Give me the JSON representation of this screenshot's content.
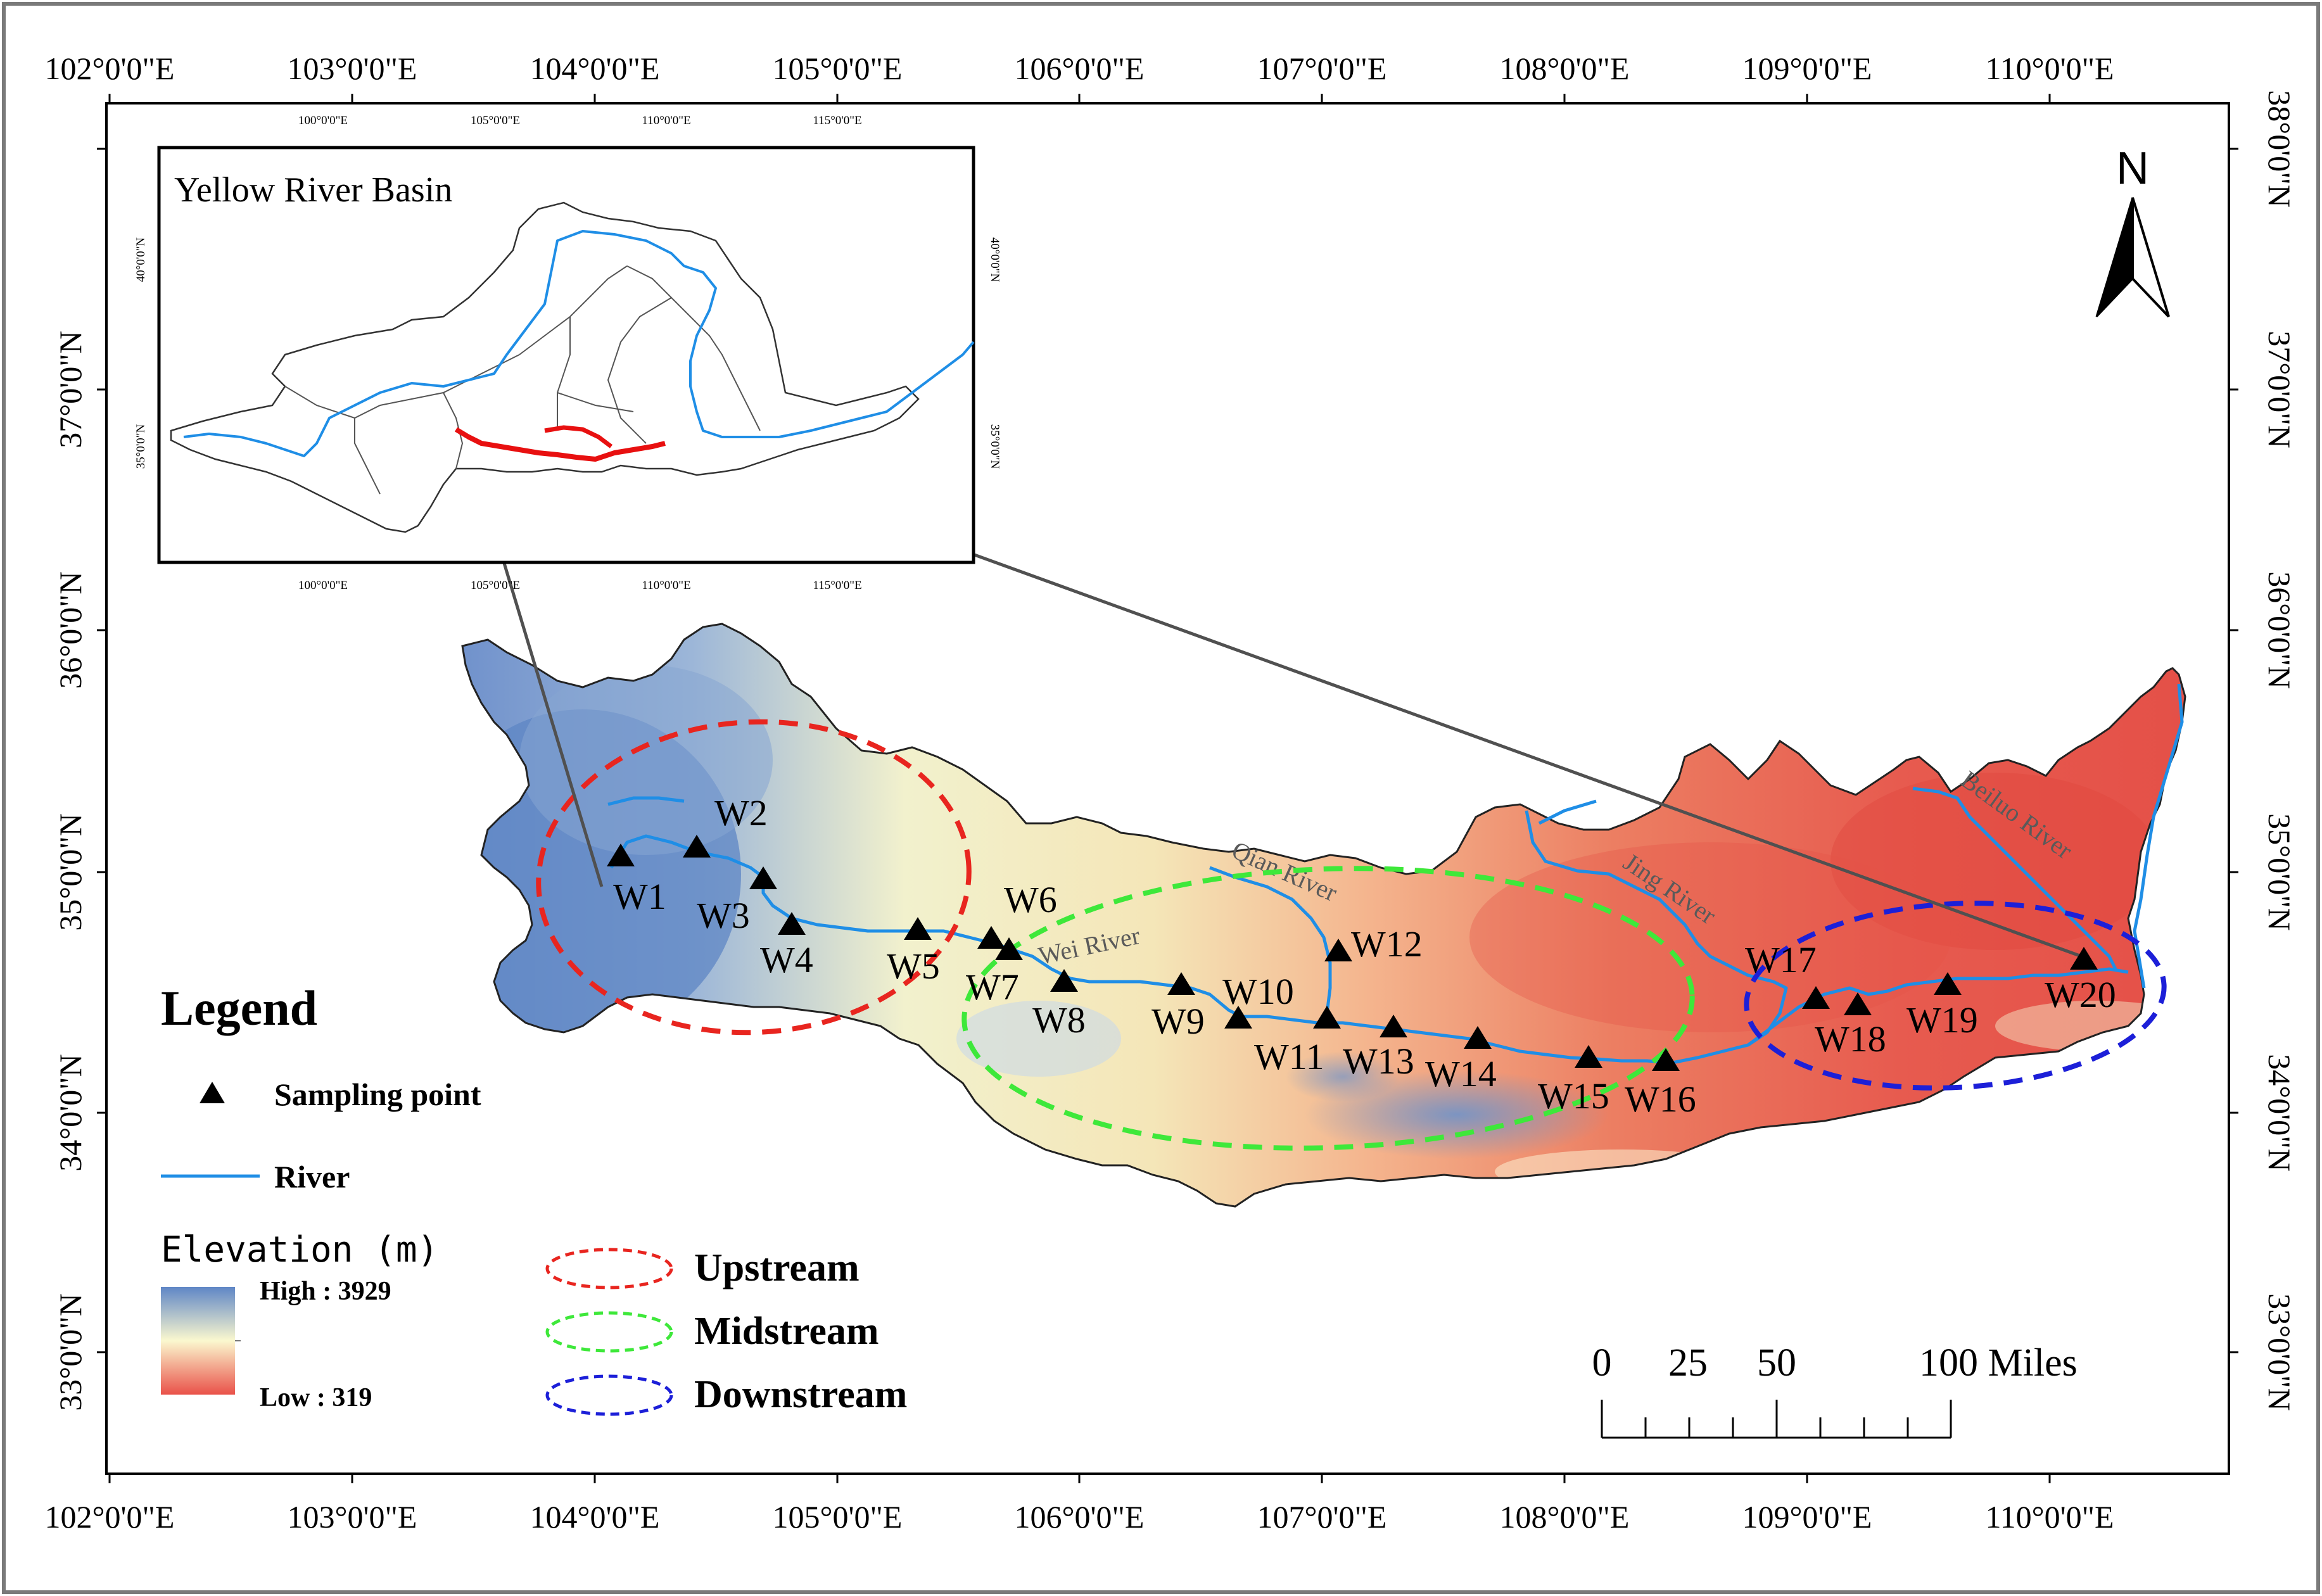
{
  "map": {
    "longitude_labels": [
      "102°0'0\"E",
      "103°0'0\"E",
      "104°0'0\"E",
      "105°0'0\"E",
      "106°0'0\"E",
      "107°0'0\"E",
      "108°0'0\"E",
      "109°0'0\"E",
      "110°0'0\"E"
    ],
    "latitude_labels": [
      "33°0'0\"N",
      "34°0'0\"N",
      "35°0'0\"N",
      "36°0'0\"N",
      "37°0'0\"N",
      "38°0'0\"N"
    ],
    "north_arrow_label": "N",
    "sampling_points": [
      "W1",
      "W2",
      "W3",
      "W4",
      "W5",
      "W6",
      "W7",
      "W8",
      "W9",
      "W10",
      "W11",
      "W12",
      "W13",
      "W14",
      "W15",
      "W16",
      "W17",
      "W18",
      "W19",
      "W20"
    ],
    "river_labels": {
      "wei": "Wei River",
      "qian": "Qian River",
      "jing": "Jing River",
      "beiluo": "Beiluo River"
    },
    "zones": {
      "upstream_color": "#e8251f",
      "midstream_color": "#3ee83a",
      "downstream_color": "#1c1fd8"
    }
  },
  "inset": {
    "title": "Yellow River Basin",
    "lon_labels": [
      "100°0'0\"E",
      "105°0'0\"E",
      "110°0'0\"E",
      "115°0'0\"E"
    ],
    "lat_labels": [
      "40°0'0\"N",
      "35°0'0\"N"
    ]
  },
  "legend": {
    "title": "Legend",
    "sampling_point": "Sampling point",
    "river": "River",
    "elevation_title": "Elevation (m)",
    "high": "High : 3929",
    "low": "Low : 319",
    "upstream": "Upstream",
    "midstream": "Midstream",
    "downstream": "Downstream",
    "river_color": "#1f8ee6"
  },
  "scale_bar": {
    "labels": [
      "0",
      "25",
      "50",
      "100 Miles"
    ]
  }
}
